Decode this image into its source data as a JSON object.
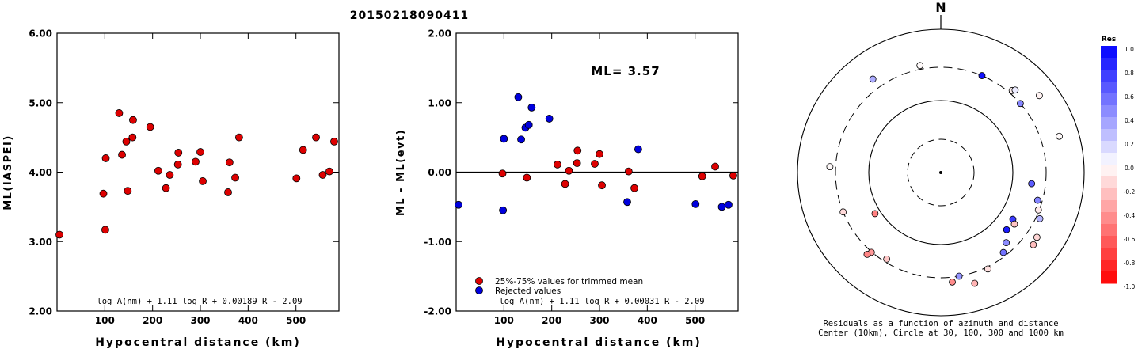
{
  "title": "20150218090411",
  "chart_data": [
    {
      "type": "scatter",
      "ylabel": "ML(IASPEI)",
      "xlabel": "Hypocentral distance (km)",
      "xlim": [
        0,
        590
      ],
      "ylim": [
        2.0,
        6.0
      ],
      "xticks": [
        "100",
        "200",
        "300",
        "400",
        "500"
      ],
      "yticks": [
        "2.00",
        "3.00",
        "4.00",
        "5.00",
        "6.00"
      ],
      "formula": "log A(nm) + 1.11 log R + 0.00189 R - 2.09",
      "series": [
        {
          "color": "#dd0000",
          "points": [
            [
              5,
              3.1
            ],
            [
              97,
              3.69
            ],
            [
              101,
              3.17
            ],
            [
              102,
              4.2
            ],
            [
              130,
              4.85
            ],
            [
              136,
              4.25
            ],
            [
              145,
              4.44
            ],
            [
              148,
              3.73
            ],
            [
              158,
              4.5
            ],
            [
              159,
              4.75
            ],
            [
              195,
              4.65
            ],
            [
              212,
              4.02
            ],
            [
              228,
              3.77
            ],
            [
              236,
              3.96
            ],
            [
              253,
              4.11
            ],
            [
              254,
              4.28
            ],
            [
              290,
              4.15
            ],
            [
              300,
              4.29
            ],
            [
              305,
              3.87
            ],
            [
              358,
              3.71
            ],
            [
              361,
              4.14
            ],
            [
              373,
              3.92
            ],
            [
              381,
              4.5
            ],
            [
              501,
              3.91
            ],
            [
              515,
              4.32
            ],
            [
              542,
              4.5
            ],
            [
              556,
              3.96
            ],
            [
              570,
              4.01
            ],
            [
              580,
              4.44
            ]
          ]
        }
      ]
    },
    {
      "type": "scatter",
      "ylabel": "ML - ML(evt)",
      "xlabel": "Hypocentral distance (km)",
      "xlim": [
        0,
        590
      ],
      "ylim": [
        -2.0,
        2.0
      ],
      "xticks": [
        "100",
        "200",
        "300",
        "400",
        "500"
      ],
      "yticks": [
        "-2.00",
        "-1.00",
        "0.00",
        "1.00",
        "2.00"
      ],
      "annotation": "ML= 3.57",
      "formula": "log A(nm) + 1.11 log R + 0.00031 R - 2.09",
      "legend_position": "bottom-left",
      "series": [
        {
          "name": "25%-75% values for trimmed mean",
          "color": "#dd0000",
          "points": [
            [
              97,
              -0.02
            ],
            [
              148,
              -0.08
            ],
            [
              212,
              0.11
            ],
            [
              228,
              -0.17
            ],
            [
              236,
              0.02
            ],
            [
              253,
              0.13
            ],
            [
              254,
              0.31
            ],
            [
              290,
              0.12
            ],
            [
              300,
              0.26
            ],
            [
              305,
              -0.19
            ],
            [
              361,
              0.01
            ],
            [
              373,
              -0.23
            ],
            [
              515,
              -0.06
            ],
            [
              542,
              0.08
            ],
            [
              580,
              -0.05
            ]
          ]
        },
        {
          "name": "Rejected values",
          "color": "#0000dd",
          "points": [
            [
              5,
              -0.47
            ],
            [
              98,
              -0.55
            ],
            [
              100,
              0.48
            ],
            [
              130,
              1.08
            ],
            [
              136,
              0.47
            ],
            [
              145,
              0.64
            ],
            [
              152,
              0.68
            ],
            [
              158,
              0.93
            ],
            [
              195,
              0.77
            ],
            [
              358,
              -0.43
            ],
            [
              381,
              0.33
            ],
            [
              501,
              -0.46
            ],
            [
              556,
              -0.5
            ],
            [
              570,
              -0.47
            ]
          ]
        }
      ]
    },
    {
      "type": "polar_scatter",
      "north_label": "N",
      "caption_line1": "Residuals as a function of azimuth and distance",
      "caption_line2": "Center (10km), Circle at 30, 100, 300 and 1000 km",
      "rings_km": [
        30,
        100,
        300,
        1000
      ],
      "colorbar": {
        "title": "Res",
        "labels": [
          "1.0",
          "0.8",
          "0.6",
          "0.4",
          "0.2",
          "0.0",
          "-0.2",
          "-0.4",
          "-0.6",
          "-0.8",
          "-1.0"
        ]
      },
      "points": [
        {
          "az": 324,
          "dist_km": 415,
          "res": 0.33
        },
        {
          "az": 349,
          "dist_km": 338,
          "res": -0.02
        },
        {
          "az": 23,
          "dist_km": 300,
          "res": 0.93
        },
        {
          "az": 41,
          "dist_km": 335,
          "res": -0.06
        },
        {
          "az": 42,
          "dist_km": 360,
          "res": 0.08
        },
        {
          "az": 49,
          "dist_km": 300,
          "res": 0.48
        },
        {
          "az": 52,
          "dist_km": 560,
          "res": -0.05
        },
        {
          "az": 73,
          "dist_km": 540,
          "res": -0.02
        },
        {
          "az": 97,
          "dist_km": 190,
          "res": 0.64
        },
        {
          "az": 106,
          "dist_km": 258,
          "res": 0.48
        },
        {
          "az": 111,
          "dist_km": 292,
          "res": -0.08
        },
        {
          "az": 115,
          "dist_km": 340,
          "res": 0.3
        },
        {
          "az": 123,
          "dist_km": 158,
          "res": 0.77
        },
        {
          "az": 124,
          "dist_km": 420,
          "res": -0.16
        },
        {
          "az": 125,
          "dist_km": 180,
          "res": -0.23
        },
        {
          "az": 128,
          "dist_km": 440,
          "res": -0.25
        },
        {
          "az": 131,
          "dist_km": 165,
          "res": 0.9
        },
        {
          "az": 137,
          "dist_km": 220,
          "res": 0.45
        },
        {
          "az": 142,
          "dist_km": 265,
          "res": 0.55
        },
        {
          "az": 154,
          "dist_km": 320,
          "res": -0.12
        },
        {
          "az": 163,
          "dist_km": 420,
          "res": -0.3
        },
        {
          "az": 170,
          "dist_km": 300,
          "res": 0.42
        },
        {
          "az": 174,
          "dist_km": 350,
          "res": -0.45
        },
        {
          "az": 212,
          "dist_km": 270,
          "res": -0.22
        },
        {
          "az": 221,
          "dist_km": 305,
          "res": -0.4
        },
        {
          "az": 222,
          "dist_km": 350,
          "res": -0.48
        },
        {
          "az": 238,
          "dist_km": 120,
          "res": -0.5
        },
        {
          "az": 248,
          "dist_km": 300,
          "res": -0.15
        },
        {
          "az": 273,
          "dist_km": 360,
          "res": -0.02
        }
      ]
    }
  ]
}
